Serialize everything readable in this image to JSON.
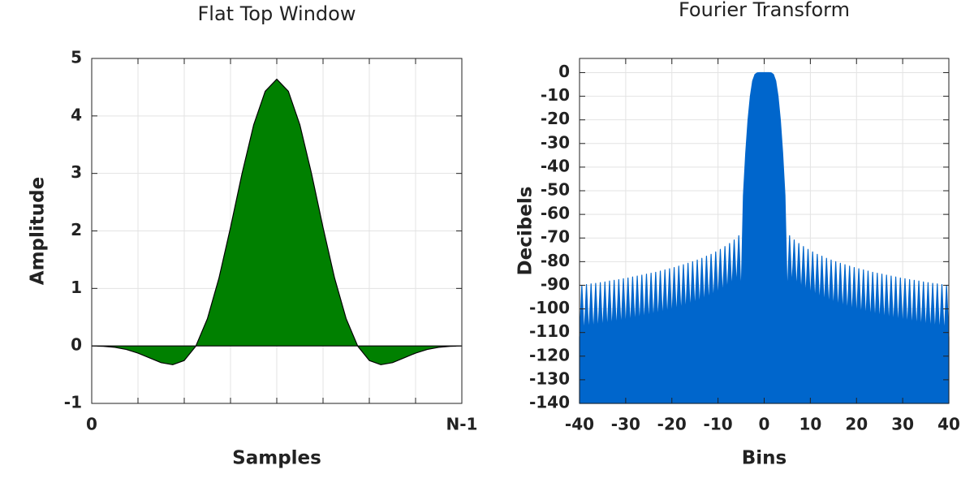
{
  "chart_data": [
    {
      "type": "area",
      "title": "Flat Top Window",
      "xlabel": "Samples",
      "ylabel": "Amplitude",
      "x": [
        0,
        1,
        2,
        3,
        4,
        5,
        6,
        7,
        8,
        9,
        10,
        11,
        12,
        13,
        14,
        15,
        16,
        17,
        18,
        19,
        20,
        21,
        22,
        23,
        24,
        25,
        26,
        27,
        28,
        29,
        30,
        31,
        32
      ],
      "values": [
        -0.002,
        -0.007,
        -0.024,
        -0.062,
        -0.125,
        -0.208,
        -0.291,
        -0.327,
        -0.254,
        -0.004,
        0.472,
        1.178,
        2.06,
        3.001,
        3.843,
        4.429,
        4.639,
        4.429,
        3.843,
        3.001,
        2.06,
        1.178,
        0.472,
        -0.004,
        -0.254,
        -0.327,
        -0.291,
        -0.208,
        -0.125,
        -0.062,
        -0.024,
        -0.007,
        -0.002
      ],
      "color": "#008000",
      "line_color": "#000000",
      "fill": "zero",
      "xlim": [
        0,
        32
      ],
      "xticks": [
        0,
        {
          "value": 4,
          "label": null
        },
        {
          "value": 8,
          "label": null
        },
        {
          "value": 12,
          "label": null
        },
        {
          "value": 16,
          "label": null
        },
        {
          "value": 20,
          "label": null
        },
        {
          "value": 24,
          "label": null
        },
        {
          "value": 28,
          "label": null
        },
        {
          "value": 32,
          "label": "N-1"
        }
      ],
      "ylim": [
        -1,
        5
      ],
      "yticks": [
        -1,
        0,
        1,
        2,
        3,
        4,
        5
      ],
      "grid": true
    },
    {
      "type": "area",
      "title": "Fourier Transform",
      "xlabel": "Bins",
      "ylabel": "Decibels",
      "x": [
        -40,
        -39.5,
        -39,
        -38.5,
        -38,
        -37.5,
        -37,
        -36.5,
        -36,
        -35.5,
        -35,
        -34.5,
        -34,
        -33.5,
        -33,
        -32.5,
        -32,
        -31.5,
        -31,
        -30.5,
        -30,
        -29.5,
        -29,
        -28.5,
        -28,
        -27.5,
        -27,
        -26.5,
        -26,
        -25.5,
        -25,
        -24.5,
        -24,
        -23.5,
        -23,
        -22.5,
        -22,
        -21.5,
        -21,
        -20.5,
        -20,
        -19.5,
        -19,
        -18.5,
        -18,
        -17.5,
        -17,
        -16.5,
        -16,
        -15.5,
        -15,
        -14.5,
        -14,
        -13.5,
        -13,
        -12.5,
        -12,
        -11.5,
        -11,
        -10.5,
        -10,
        -9.5,
        -9,
        -8.5,
        -8,
        -7.5,
        -7,
        -6.5,
        -6,
        -5.5,
        -5,
        -4.5,
        -4,
        -3.5,
        -3,
        -2.5,
        -2,
        -1.5,
        -1,
        -0.5,
        0,
        0.5,
        1,
        1.5,
        2,
        2.5,
        3,
        3.5,
        4,
        4.5,
        5,
        5.5,
        6,
        6.5,
        7,
        7.5,
        8,
        8.5,
        9,
        9.5,
        10,
        10.5,
        11,
        11.5,
        12,
        12.5,
        13,
        13.5,
        14,
        14.5,
        15,
        15.5,
        16,
        16.5,
        17,
        17.5,
        18,
        18.5,
        19,
        19.5,
        20,
        20.5,
        21,
        21.5,
        22,
        22.5,
        23,
        23.5,
        24,
        24.5,
        25,
        25.5,
        26,
        26.5,
        27,
        27.5,
        28,
        28.5,
        29,
        29.5,
        30,
        30.5,
        31,
        31.5,
        32,
        32.5,
        33,
        33.5,
        34,
        34.5,
        35,
        35.5,
        36,
        36.5,
        37,
        37.5,
        38,
        38.5,
        39,
        39.5,
        40
      ],
      "values": [
        -112.0,
        -90.0,
        -111.7,
        -89.7,
        -111.4,
        -89.4,
        -111.2,
        -89.2,
        -110.9,
        -88.9,
        -110.6,
        -88.6,
        -110.2,
        -88.2,
        -109.9,
        -87.9,
        -109.6,
        -87.6,
        -109.2,
        -87.2,
        -108.9,
        -86.9,
        -108.5,
        -86.5,
        -108.1,
        -86.1,
        -107.7,
        -85.7,
        -107.3,
        -85.3,
        -106.9,
        -84.9,
        -106.5,
        -84.5,
        -106.0,
        -84.0,
        -105.5,
        -83.5,
        -105.0,
        -83.0,
        -104.5,
        -82.5,
        -103.9,
        -81.9,
        -103.3,
        -81.3,
        -102.7,
        -80.7,
        -102.0,
        -80.0,
        -101.3,
        -79.3,
        -100.6,
        -78.6,
        -99.7,
        -77.7,
        -98.9,
        -76.9,
        -97.9,
        -75.9,
        -96.8,
        -74.8,
        -95.6,
        -73.6,
        -94.3,
        -72.3,
        -92.8,
        -70.8,
        -91.0,
        -69.0,
        -95,
        -52,
        -34,
        -20,
        -10,
        -3.5,
        -0.8,
        -0.1,
        0,
        0,
        0,
        0,
        0,
        -0.1,
        -0.8,
        -3.5,
        -10,
        -20,
        -34,
        -52,
        -95,
        -69.0,
        -91.0,
        -70.8,
        -92.8,
        -72.3,
        -94.3,
        -73.6,
        -95.6,
        -74.8,
        -96.8,
        -75.9,
        -97.9,
        -76.9,
        -98.9,
        -77.7,
        -99.7,
        -78.6,
        -100.6,
        -79.3,
        -101.3,
        -80.0,
        -102.0,
        -80.7,
        -102.7,
        -81.3,
        -103.3,
        -81.9,
        -103.9,
        -82.5,
        -104.5,
        -83.0,
        -105.0,
        -83.5,
        -105.5,
        -84.0,
        -106.0,
        -84.5,
        -106.5,
        -84.9,
        -106.9,
        -85.3,
        -107.3,
        -85.7,
        -107.7,
        -86.1,
        -108.1,
        -86.5,
        -108.5,
        -86.9,
        -108.9,
        -87.2,
        -109.2,
        -87.6,
        -109.6,
        -87.9,
        -109.9,
        -88.2,
        -110.2,
        -88.6,
        -110.6,
        -88.9,
        -110.9,
        -89.2,
        -111.2,
        -89.4,
        -111.4,
        -89.7,
        -111.7,
        -90.0,
        -112.0
      ],
      "color": "#0066cc",
      "line_color": "#0066cc",
      "fill": "bottom",
      "xlim": [
        -40,
        40
      ],
      "xticks": [
        -40,
        -30,
        -20,
        -10,
        0,
        10,
        20,
        30,
        40
      ],
      "ylim": [
        -140,
        6
      ],
      "yticks": [
        -140,
        -130,
        -120,
        -110,
        -100,
        -90,
        -80,
        -70,
        -60,
        -50,
        -40,
        -30,
        -20,
        -10,
        0
      ],
      "grid": true
    }
  ]
}
